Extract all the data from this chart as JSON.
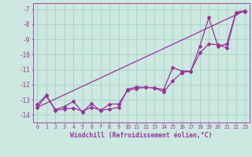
{
  "bg_color": "#cce8e0",
  "grid_color": "#aad4c8",
  "line_color": "#993399",
  "xlabel": "Windchill (Refroidissement éolien,°C)",
  "xlim": [
    -0.5,
    23.5
  ],
  "ylim": [
    -14.5,
    -6.6
  ],
  "yticks": [
    -14,
    -13,
    -12,
    -11,
    -10,
    -9,
    -8,
    -7
  ],
  "xticks": [
    0,
    1,
    2,
    3,
    4,
    5,
    6,
    7,
    8,
    9,
    10,
    11,
    12,
    13,
    14,
    15,
    16,
    17,
    18,
    19,
    20,
    21,
    22,
    23
  ],
  "line1_x": [
    0,
    23
  ],
  "line1_y": [
    -13.5,
    -7.1
  ],
  "line2_x": [
    0,
    1,
    2,
    3,
    4,
    5,
    6,
    7,
    8,
    9,
    10,
    11,
    12,
    13,
    14,
    15,
    16,
    17,
    18,
    19,
    20,
    21,
    22,
    23
  ],
  "line2_y": [
    -13.5,
    -12.75,
    -13.7,
    -13.6,
    -13.55,
    -13.75,
    -13.5,
    -13.68,
    -13.62,
    -13.5,
    -12.3,
    -12.15,
    -12.18,
    -12.2,
    -12.48,
    -11.75,
    -11.2,
    -11.1,
    -9.9,
    -9.3,
    -9.35,
    -9.55,
    -7.25,
    -7.15
  ],
  "line3_x": [
    0,
    1,
    2,
    3,
    4,
    5,
    6,
    7,
    8,
    9,
    10,
    11,
    12,
    13,
    14,
    15,
    16,
    17,
    18,
    19,
    20,
    21,
    22,
    23
  ],
  "line3_y": [
    -13.3,
    -12.7,
    -13.65,
    -13.45,
    -13.1,
    -13.82,
    -13.25,
    -13.72,
    -13.28,
    -13.28,
    -12.38,
    -12.25,
    -12.18,
    -12.22,
    -12.32,
    -10.85,
    -11.1,
    -11.1,
    -9.45,
    -7.55,
    -9.45,
    -9.3,
    -7.2,
    -7.1
  ]
}
